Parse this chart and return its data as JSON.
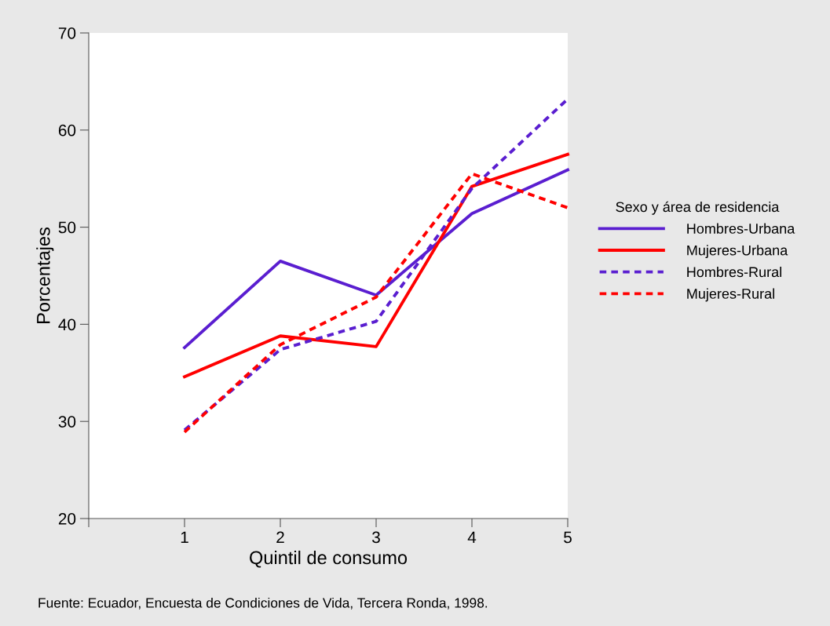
{
  "chart_data": {
    "type": "line",
    "xlabel": "Quintil de consumo",
    "ylabel": "Porcentajes",
    "legend_title": "Sexo y área de residencia",
    "x": [
      1,
      2,
      3,
      4,
      5
    ],
    "series": [
      {
        "name": "Hombres-Urbana",
        "color": "#5a1ed0",
        "line_style": "solid",
        "values": [
          37.6,
          46.5,
          43.0,
          51.4,
          55.9
        ]
      },
      {
        "name": "Mujeres-Urbana",
        "color": "#ff0000",
        "line_style": "solid",
        "values": [
          34.6,
          38.8,
          37.7,
          54.2,
          57.5
        ]
      },
      {
        "name": "Hombres-Rural",
        "color": "#5a1ed0",
        "line_style": "dotted",
        "values": [
          29.1,
          37.4,
          40.3,
          54.0,
          63.2
        ]
      },
      {
        "name": "Mujeres-Rural",
        "color": "#ff0000",
        "line_style": "dotted",
        "values": [
          28.9,
          37.9,
          42.8,
          55.5,
          52.0
        ]
      }
    ],
    "xlim": [
      0,
      5
    ],
    "xticks": [
      {
        "value": 0,
        "label": null
      },
      1,
      2,
      3,
      4,
      5
    ],
    "ylim": [
      20,
      70
    ],
    "yticks": [
      20,
      30,
      40,
      50,
      60,
      70
    ],
    "grid": false,
    "legend": "right",
    "marker": "none",
    "annotations": [
      "Fuente: Ecuador, Encuesta de Condiciones de Vida, Tercera Ronda, 1998."
    ]
  }
}
